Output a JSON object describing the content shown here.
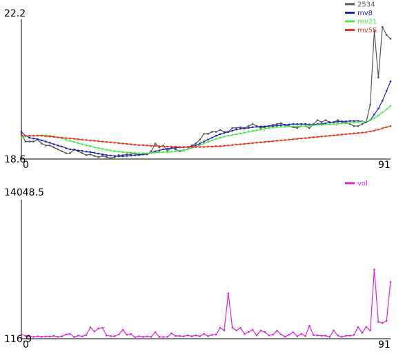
{
  "chart_data": [
    {
      "type": "line",
      "x_first": "0",
      "x_last": "91",
      "ylim": [
        18.6,
        22.2
      ],
      "y_top_label": "22.2",
      "y_bottom_label": "18.6",
      "legend_placement": "top-right",
      "series": [
        {
          "name": "2534",
          "color": "#555555",
          "values": [
            19.25,
            19.05,
            19.05,
            19.05,
            19.1,
            19.0,
            18.95,
            18.95,
            18.9,
            18.85,
            18.8,
            18.75,
            18.75,
            18.85,
            18.8,
            18.75,
            18.7,
            18.72,
            18.68,
            18.65,
            18.68,
            18.65,
            18.62,
            18.65,
            18.7,
            18.7,
            18.72,
            18.72,
            18.75,
            18.7,
            18.72,
            18.72,
            18.8,
            19.0,
            18.9,
            18.95,
            18.8,
            18.9,
            18.85,
            18.8,
            18.82,
            18.85,
            18.95,
            19.0,
            19.1,
            19.25,
            19.25,
            19.3,
            19.3,
            19.35,
            19.3,
            19.3,
            19.4,
            19.4,
            19.42,
            19.4,
            19.45,
            19.5,
            19.45,
            19.4,
            19.42,
            19.45,
            19.48,
            19.5,
            19.52,
            19.48,
            19.45,
            19.42,
            19.4,
            19.45,
            19.45,
            19.4,
            19.5,
            19.6,
            19.55,
            19.6,
            19.55,
            19.55,
            19.6,
            19.55,
            19.55,
            19.5,
            19.45,
            19.45,
            19.5,
            19.55,
            20.0,
            21.9,
            20.7,
            22.0,
            21.8,
            21.7
          ]
        },
        {
          "name": "mv8",
          "color": "#2222bb",
          "values": [
            19.3,
            19.2,
            19.15,
            19.13,
            19.11,
            19.08,
            19.05,
            19.02,
            18.98,
            18.95,
            18.92,
            18.88,
            18.85,
            18.84,
            18.82,
            18.81,
            18.79,
            18.78,
            18.76,
            18.74,
            18.72,
            18.7,
            18.69,
            18.68,
            18.67,
            18.67,
            18.68,
            18.69,
            18.7,
            18.71,
            18.72,
            18.73,
            18.76,
            18.8,
            18.82,
            18.85,
            18.86,
            18.88,
            18.89,
            18.9,
            18.9,
            18.91,
            18.93,
            18.95,
            19.0,
            19.05,
            19.1,
            19.15,
            19.2,
            19.24,
            19.27,
            19.3,
            19.33,
            19.36,
            19.38,
            19.39,
            19.4,
            19.42,
            19.43,
            19.44,
            19.44,
            19.45,
            19.45,
            19.46,
            19.47,
            19.48,
            19.49,
            19.5,
            19.5,
            19.5,
            19.5,
            19.49,
            19.49,
            19.5,
            19.5,
            19.52,
            19.54,
            19.55,
            19.56,
            19.57,
            19.57,
            19.58,
            19.58,
            19.58,
            19.57,
            19.55,
            19.6,
            19.75,
            19.9,
            20.1,
            20.35,
            20.6
          ]
        },
        {
          "name": "mv21",
          "color": "#44ee44",
          "values": [
            19.15,
            19.18,
            19.2,
            19.2,
            19.21,
            19.21,
            19.21,
            19.2,
            19.18,
            19.16,
            19.13,
            19.1,
            19.07,
            19.04,
            19.01,
            18.98,
            18.95,
            18.93,
            18.9,
            18.88,
            18.86,
            18.84,
            18.82,
            18.8,
            18.79,
            18.78,
            18.77,
            18.76,
            18.76,
            18.75,
            18.75,
            18.75,
            18.76,
            18.76,
            18.77,
            18.78,
            18.78,
            18.79,
            18.8,
            18.82,
            18.83,
            18.85,
            18.88,
            18.92,
            18.96,
            19.0,
            19.04,
            19.08,
            19.12,
            19.15,
            19.18,
            19.2,
            19.22,
            19.24,
            19.26,
            19.28,
            19.3,
            19.32,
            19.34,
            19.36,
            19.38,
            19.4,
            19.41,
            19.42,
            19.43,
            19.43,
            19.44,
            19.44,
            19.44,
            19.45,
            19.45,
            19.46,
            19.47,
            19.48,
            19.48,
            19.49,
            19.5,
            19.5,
            19.51,
            19.52,
            19.52,
            19.53,
            19.54,
            19.55,
            19.56,
            19.57,
            19.6,
            19.65,
            19.72,
            19.8,
            19.88,
            19.97
          ]
        },
        {
          "name": "mv55",
          "color": "#ee3322",
          "values": [
            19.2,
            19.2,
            19.2,
            19.2,
            19.2,
            19.2,
            19.19,
            19.18,
            19.17,
            19.16,
            19.15,
            19.14,
            19.13,
            19.12,
            19.11,
            19.1,
            19.09,
            19.08,
            19.07,
            19.06,
            19.05,
            19.04,
            19.03,
            19.02,
            19.01,
            19.0,
            18.99,
            18.98,
            18.97,
            18.96,
            18.96,
            18.95,
            18.94,
            18.94,
            18.93,
            18.93,
            18.92,
            18.92,
            18.92,
            18.91,
            18.91,
            18.91,
            18.91,
            18.91,
            18.91,
            18.91,
            18.92,
            18.92,
            18.93,
            18.93,
            18.94,
            18.95,
            18.96,
            18.97,
            18.98,
            18.99,
            19.0,
            19.01,
            19.02,
            19.03,
            19.04,
            19.05,
            19.06,
            19.07,
            19.08,
            19.09,
            19.1,
            19.11,
            19.12,
            19.13,
            19.14,
            19.15,
            19.16,
            19.17,
            19.18,
            19.19,
            19.2,
            19.21,
            19.22,
            19.23,
            19.24,
            19.25,
            19.26,
            19.27,
            19.28,
            19.29,
            19.31,
            19.33,
            19.36,
            19.39,
            19.42,
            19.45
          ]
        }
      ]
    },
    {
      "type": "line",
      "x_first": "0",
      "x_last": "91",
      "ylim": [
        116.9,
        14048.5
      ],
      "y_top_label": "14048.5",
      "y_bottom_label": "116.9",
      "legend_placement": "top-right",
      "series": [
        {
          "name": "vol",
          "color": "#dd22dd",
          "values": [
            550,
            400,
            350,
            300,
            360,
            310,
            340,
            330,
            410,
            300,
            350,
            540,
            600,
            290,
            430,
            350,
            490,
            1250,
            850,
            1150,
            1210,
            440,
            380,
            370,
            540,
            1000,
            520,
            570,
            280,
            360,
            300,
            350,
            300,
            770,
            300,
            290,
            300,
            660,
            400,
            390,
            360,
            450,
            360,
            450,
            360,
            600,
            370,
            500,
            530,
            1210,
            950,
            4650,
            1230,
            950,
            1200,
            600,
            790,
            1010,
            450,
            930,
            790,
            450,
            520,
            920,
            550,
            320,
            520,
            770,
            350,
            600,
            380,
            1400,
            480,
            450,
            420,
            420,
            300,
            950,
            440,
            300,
            420,
            420,
            500,
            1270,
            700,
            1300,
            940,
            7050,
            1800,
            1700,
            1900,
            5800
          ]
        }
      ]
    }
  ]
}
